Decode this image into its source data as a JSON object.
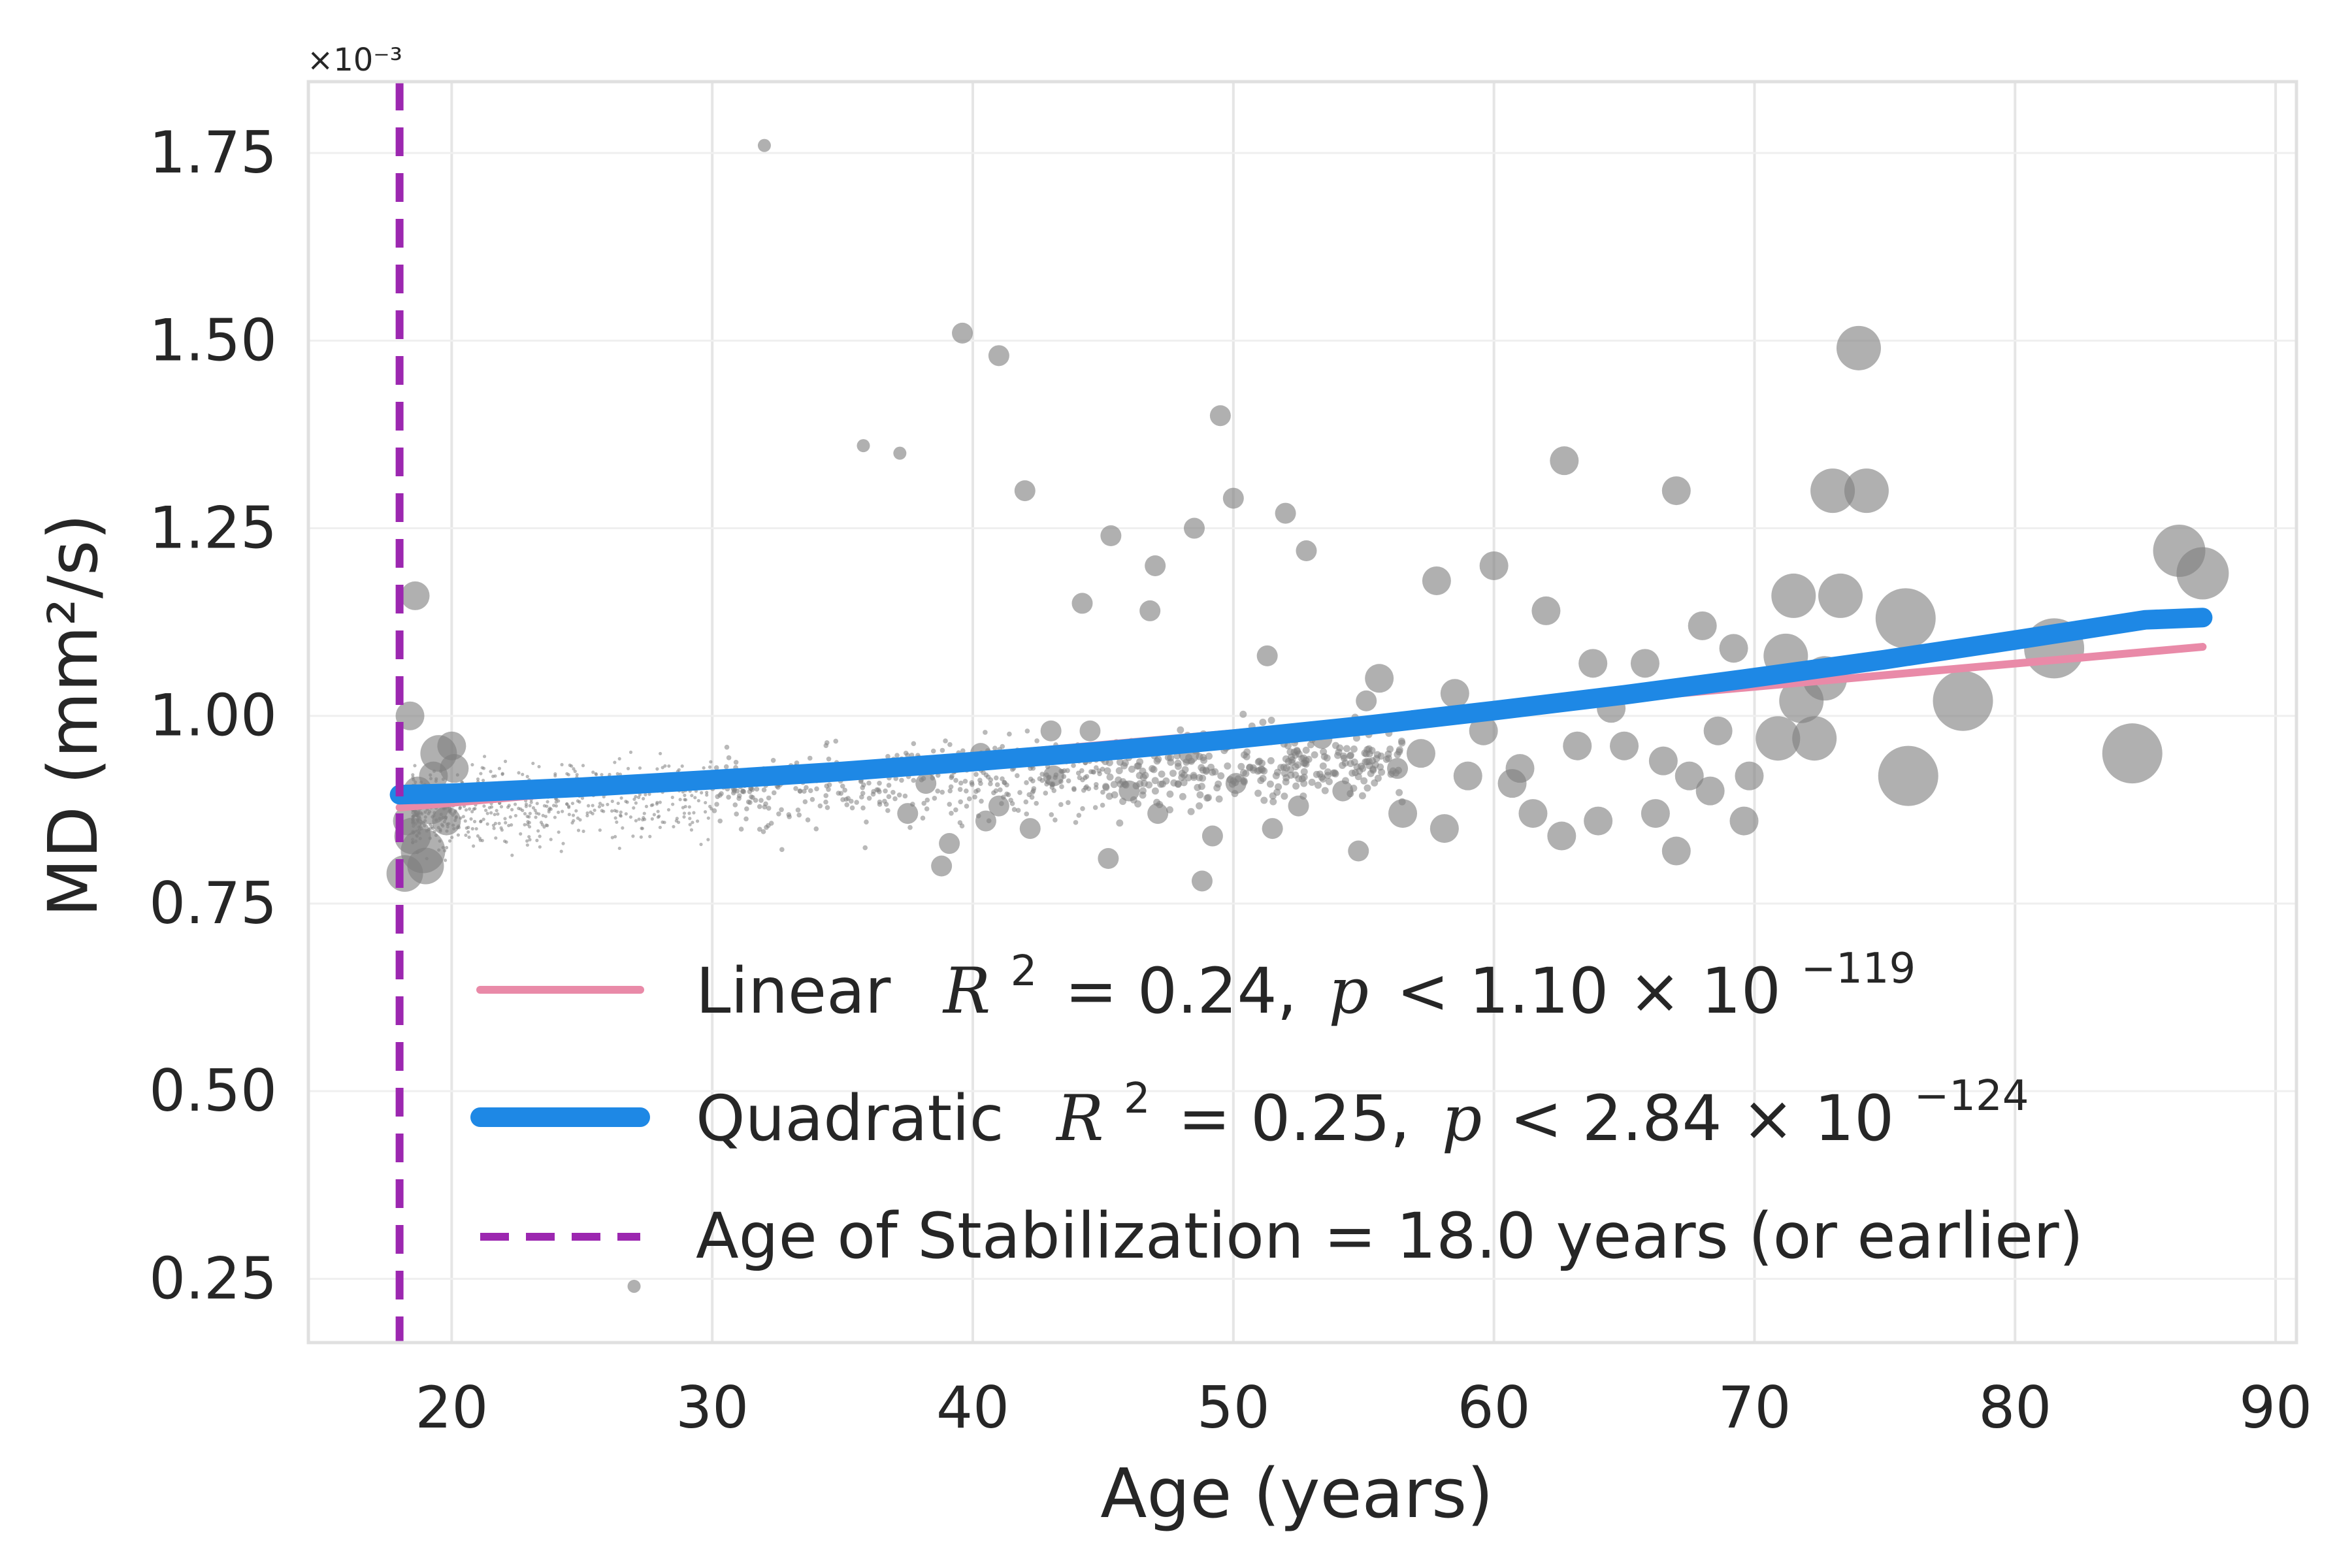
{
  "chart_data": {
    "type": "scatter",
    "xlabel": "Age (years)",
    "ylabel": "MD (mm²/s)",
    "y_scale_label": "×10⁻³",
    "xlim": [
      14.5,
      90.8
    ],
    "ylim": [
      0.165,
      1.845
    ],
    "x_ticks": [
      20,
      30,
      40,
      50,
      60,
      70,
      80,
      90
    ],
    "x_tick_labels": [
      "20",
      "30",
      "40",
      "50",
      "60",
      "70",
      "80",
      "90"
    ],
    "y_ticks": [
      0.25,
      0.5,
      0.75,
      1.0,
      1.25,
      1.5,
      1.75
    ],
    "y_tick_labels": [
      "0.25",
      "0.50",
      "0.75",
      "1.00",
      "1.25",
      "1.50",
      "1.75"
    ],
    "grid": true,
    "legend_position": "lower-right",
    "colors": {
      "points": "#7f7f7f",
      "linear": "#e98aa8",
      "quadratic": "#1e88e5",
      "stabilization": "#9c27b0",
      "grid": "#e5e5e5",
      "frame": "#e0e0e0"
    },
    "series": [
      {
        "kind": "line",
        "style": "linear",
        "legend_label": "Linear",
        "r2_label": "R",
        "r2_value": "= 0.24,",
        "p_label": "p",
        "p_value": "< 1.10 × 10",
        "p_exp": "−119",
        "x": [
          18,
          87.2
        ],
        "y": [
          0.878,
          1.092
        ]
      },
      {
        "kind": "line",
        "style": "quadratic",
        "legend_label": "Quadratic",
        "r2_label": "R",
        "r2_value": "= 0.25,",
        "p_label": "p",
        "p_value": "< 2.84 × 10",
        "p_exp": "−124",
        "x": [
          18,
          20,
          25,
          30,
          35,
          40,
          45,
          50,
          55,
          60,
          65,
          70,
          75,
          80,
          85,
          87.2
        ],
        "y": [
          0.895,
          0.897,
          0.905,
          0.915,
          0.926,
          0.939,
          0.953,
          0.969,
          0.987,
          1.007,
          1.028,
          1.051,
          1.075,
          1.101,
          1.128,
          1.131
        ]
      },
      {
        "kind": "vline",
        "style": "stabilization",
        "legend_label": "Age of Stabilization = 18.0 years (or earlier)",
        "x": 18.0
      }
    ],
    "points": [
      [
        18.3,
        0.86,
        3
      ],
      [
        18.5,
        0.84,
        4
      ],
      [
        18.7,
        0.9,
        3
      ],
      [
        18.9,
        0.82,
        5
      ],
      [
        19.2,
        0.88,
        4
      ],
      [
        19.5,
        0.95,
        4
      ],
      [
        19.8,
        0.86,
        3
      ],
      [
        20.1,
        0.93,
        3
      ],
      [
        18.4,
        1.0,
        3
      ],
      [
        18.6,
        1.16,
        3
      ],
      [
        19.0,
        0.8,
        4
      ],
      [
        19.3,
        0.92,
        3
      ],
      [
        20.0,
        0.96,
        3
      ],
      [
        18.2,
        0.79,
        4
      ],
      [
        37.5,
        0.87,
        2
      ],
      [
        38.2,
        0.91,
        2
      ],
      [
        39.1,
        0.83,
        2
      ],
      [
        40.3,
        0.95,
        2
      ],
      [
        41.0,
        0.88,
        2
      ],
      [
        42.2,
        0.85,
        2
      ],
      [
        43.1,
        0.92,
        2
      ],
      [
        44.5,
        0.98,
        2
      ],
      [
        45.2,
        0.81,
        2
      ],
      [
        46.0,
        0.9,
        2
      ],
      [
        47.1,
        0.87,
        2
      ],
      [
        48.3,
        0.95,
        2
      ],
      [
        49.2,
        0.84,
        2
      ],
      [
        50.1,
        0.91,
        2
      ],
      [
        51.3,
        1.08,
        2
      ],
      [
        52.5,
        0.88,
        2
      ],
      [
        53.4,
        0.97,
        2
      ],
      [
        54.2,
        0.9,
        2
      ],
      [
        55.1,
        1.02,
        2
      ],
      [
        56.3,
        0.93,
        2
      ],
      [
        39.6,
        1.51,
        2
      ],
      [
        41.0,
        1.48,
        2
      ],
      [
        42.0,
        1.3,
        2
      ],
      [
        44.2,
        1.15,
        2
      ],
      [
        47.0,
        1.2,
        2
      ],
      [
        48.5,
        1.25,
        2
      ],
      [
        49.5,
        1.4,
        2
      ],
      [
        50.0,
        1.29,
        2
      ],
      [
        52.0,
        1.27,
        2
      ],
      [
        52.8,
        1.22,
        2
      ],
      [
        45.3,
        1.24,
        2
      ],
      [
        46.8,
        1.14,
        2
      ],
      [
        43.0,
        0.98,
        2
      ],
      [
        40.5,
        0.86,
        2
      ],
      [
        38.8,
        0.8,
        2
      ],
      [
        48.8,
        0.78,
        2
      ],
      [
        51.5,
        0.85,
        2
      ],
      [
        54.8,
        0.82,
        2
      ],
      [
        57.2,
        0.95,
        3
      ],
      [
        58.1,
        0.85,
        3
      ],
      [
        58.5,
        1.03,
        3
      ],
      [
        59.0,
        0.92,
        3
      ],
      [
        60.0,
        1.2,
        3
      ],
      [
        60.7,
        0.91,
        3
      ],
      [
        61.5,
        0.87,
        3
      ],
      [
        62.0,
        1.14,
        3
      ],
      [
        62.6,
        0.84,
        3
      ],
      [
        63.2,
        0.96,
        3
      ],
      [
        63.8,
        1.07,
        3
      ],
      [
        64.5,
        1.01,
        3
      ],
      [
        65.0,
        0.96,
        3
      ],
      [
        65.8,
        1.07,
        3
      ],
      [
        66.5,
        0.94,
        3
      ],
      [
        67.0,
        0.82,
        3
      ],
      [
        67.5,
        0.92,
        3
      ],
      [
        68.0,
        1.12,
        3
      ],
      [
        68.6,
        0.98,
        3
      ],
      [
        69.2,
        1.09,
        3
      ],
      [
        69.6,
        0.86,
        3
      ],
      [
        62.7,
        1.34,
        3
      ],
      [
        67.0,
        1.3,
        3
      ],
      [
        57.8,
        1.18,
        3
      ],
      [
        55.6,
        1.05,
        3
      ],
      [
        56.5,
        0.87,
        3
      ],
      [
        59.6,
        0.98,
        3
      ],
      [
        61.0,
        0.93,
        3
      ],
      [
        64.0,
        0.86,
        3
      ],
      [
        66.2,
        0.87,
        3
      ],
      [
        68.3,
        0.9,
        3
      ],
      [
        69.8,
        0.92,
        3
      ],
      [
        70.9,
        0.97,
        5
      ],
      [
        71.5,
        1.16,
        5
      ],
      [
        71.8,
        1.02,
        5
      ],
      [
        72.3,
        0.97,
        5
      ],
      [
        73.0,
        1.3,
        5
      ],
      [
        73.3,
        1.16,
        5
      ],
      [
        74.0,
        1.49,
        5
      ],
      [
        74.3,
        1.3,
        5
      ],
      [
        71.2,
        1.08,
        5
      ],
      [
        72.7,
        1.05,
        5
      ],
      [
        75.8,
        1.13,
        7
      ],
      [
        75.9,
        0.92,
        7
      ],
      [
        78.0,
        1.02,
        7
      ],
      [
        81.5,
        1.09,
        7
      ],
      [
        84.5,
        0.95,
        7
      ],
      [
        86.3,
        1.22,
        6
      ],
      [
        87.2,
        1.19,
        6
      ],
      [
        32.0,
        1.76,
        1
      ],
      [
        27.0,
        0.24,
        1
      ],
      [
        35.8,
        1.36,
        1
      ],
      [
        37.2,
        1.35,
        1
      ]
    ],
    "cloud": {
      "x_range": [
        18,
        56
      ],
      "note_center": [
        0.875,
        0.93
      ]
    }
  }
}
